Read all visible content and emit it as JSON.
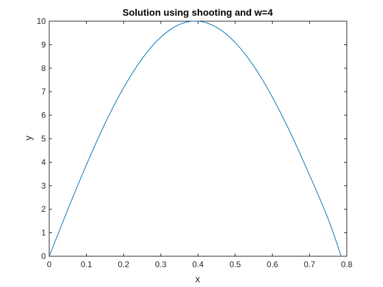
{
  "chart_data": {
    "type": "line",
    "title": "Solution using shooting and w=4",
    "xlabel": "x",
    "ylabel": "y",
    "xlim": [
      0,
      0.8
    ],
    "ylim": [
      0,
      10
    ],
    "xticks": [
      0,
      0.1,
      0.2,
      0.3,
      0.4,
      0.5,
      0.6,
      0.7,
      0.8
    ],
    "xtick_labels": [
      "0",
      "0.1",
      "0.2",
      "0.3",
      "0.4",
      "0.5",
      "0.6",
      "0.7",
      "0.8"
    ],
    "yticks": [
      0,
      1,
      2,
      3,
      4,
      5,
      6,
      7,
      8,
      9,
      10
    ],
    "ytick_labels": [
      "0",
      "1",
      "2",
      "3",
      "4",
      "5",
      "6",
      "7",
      "8",
      "9",
      "10"
    ],
    "grid": false,
    "box": true,
    "line_color": "#0072BD",
    "series": [
      {
        "x": [
          0,
          0.05,
          0.1,
          0.15,
          0.2,
          0.25,
          0.3,
          0.35,
          0.4,
          0.45,
          0.5,
          0.55,
          0.6,
          0.65,
          0.7,
          0.75,
          0.785
        ],
        "y": [
          0,
          1.99,
          3.89,
          5.65,
          7.17,
          8.41,
          9.32,
          9.86,
          10.0,
          9.74,
          9.09,
          8.09,
          6.77,
          5.2,
          3.45,
          1.59,
          0.0
        ]
      }
    ]
  }
}
